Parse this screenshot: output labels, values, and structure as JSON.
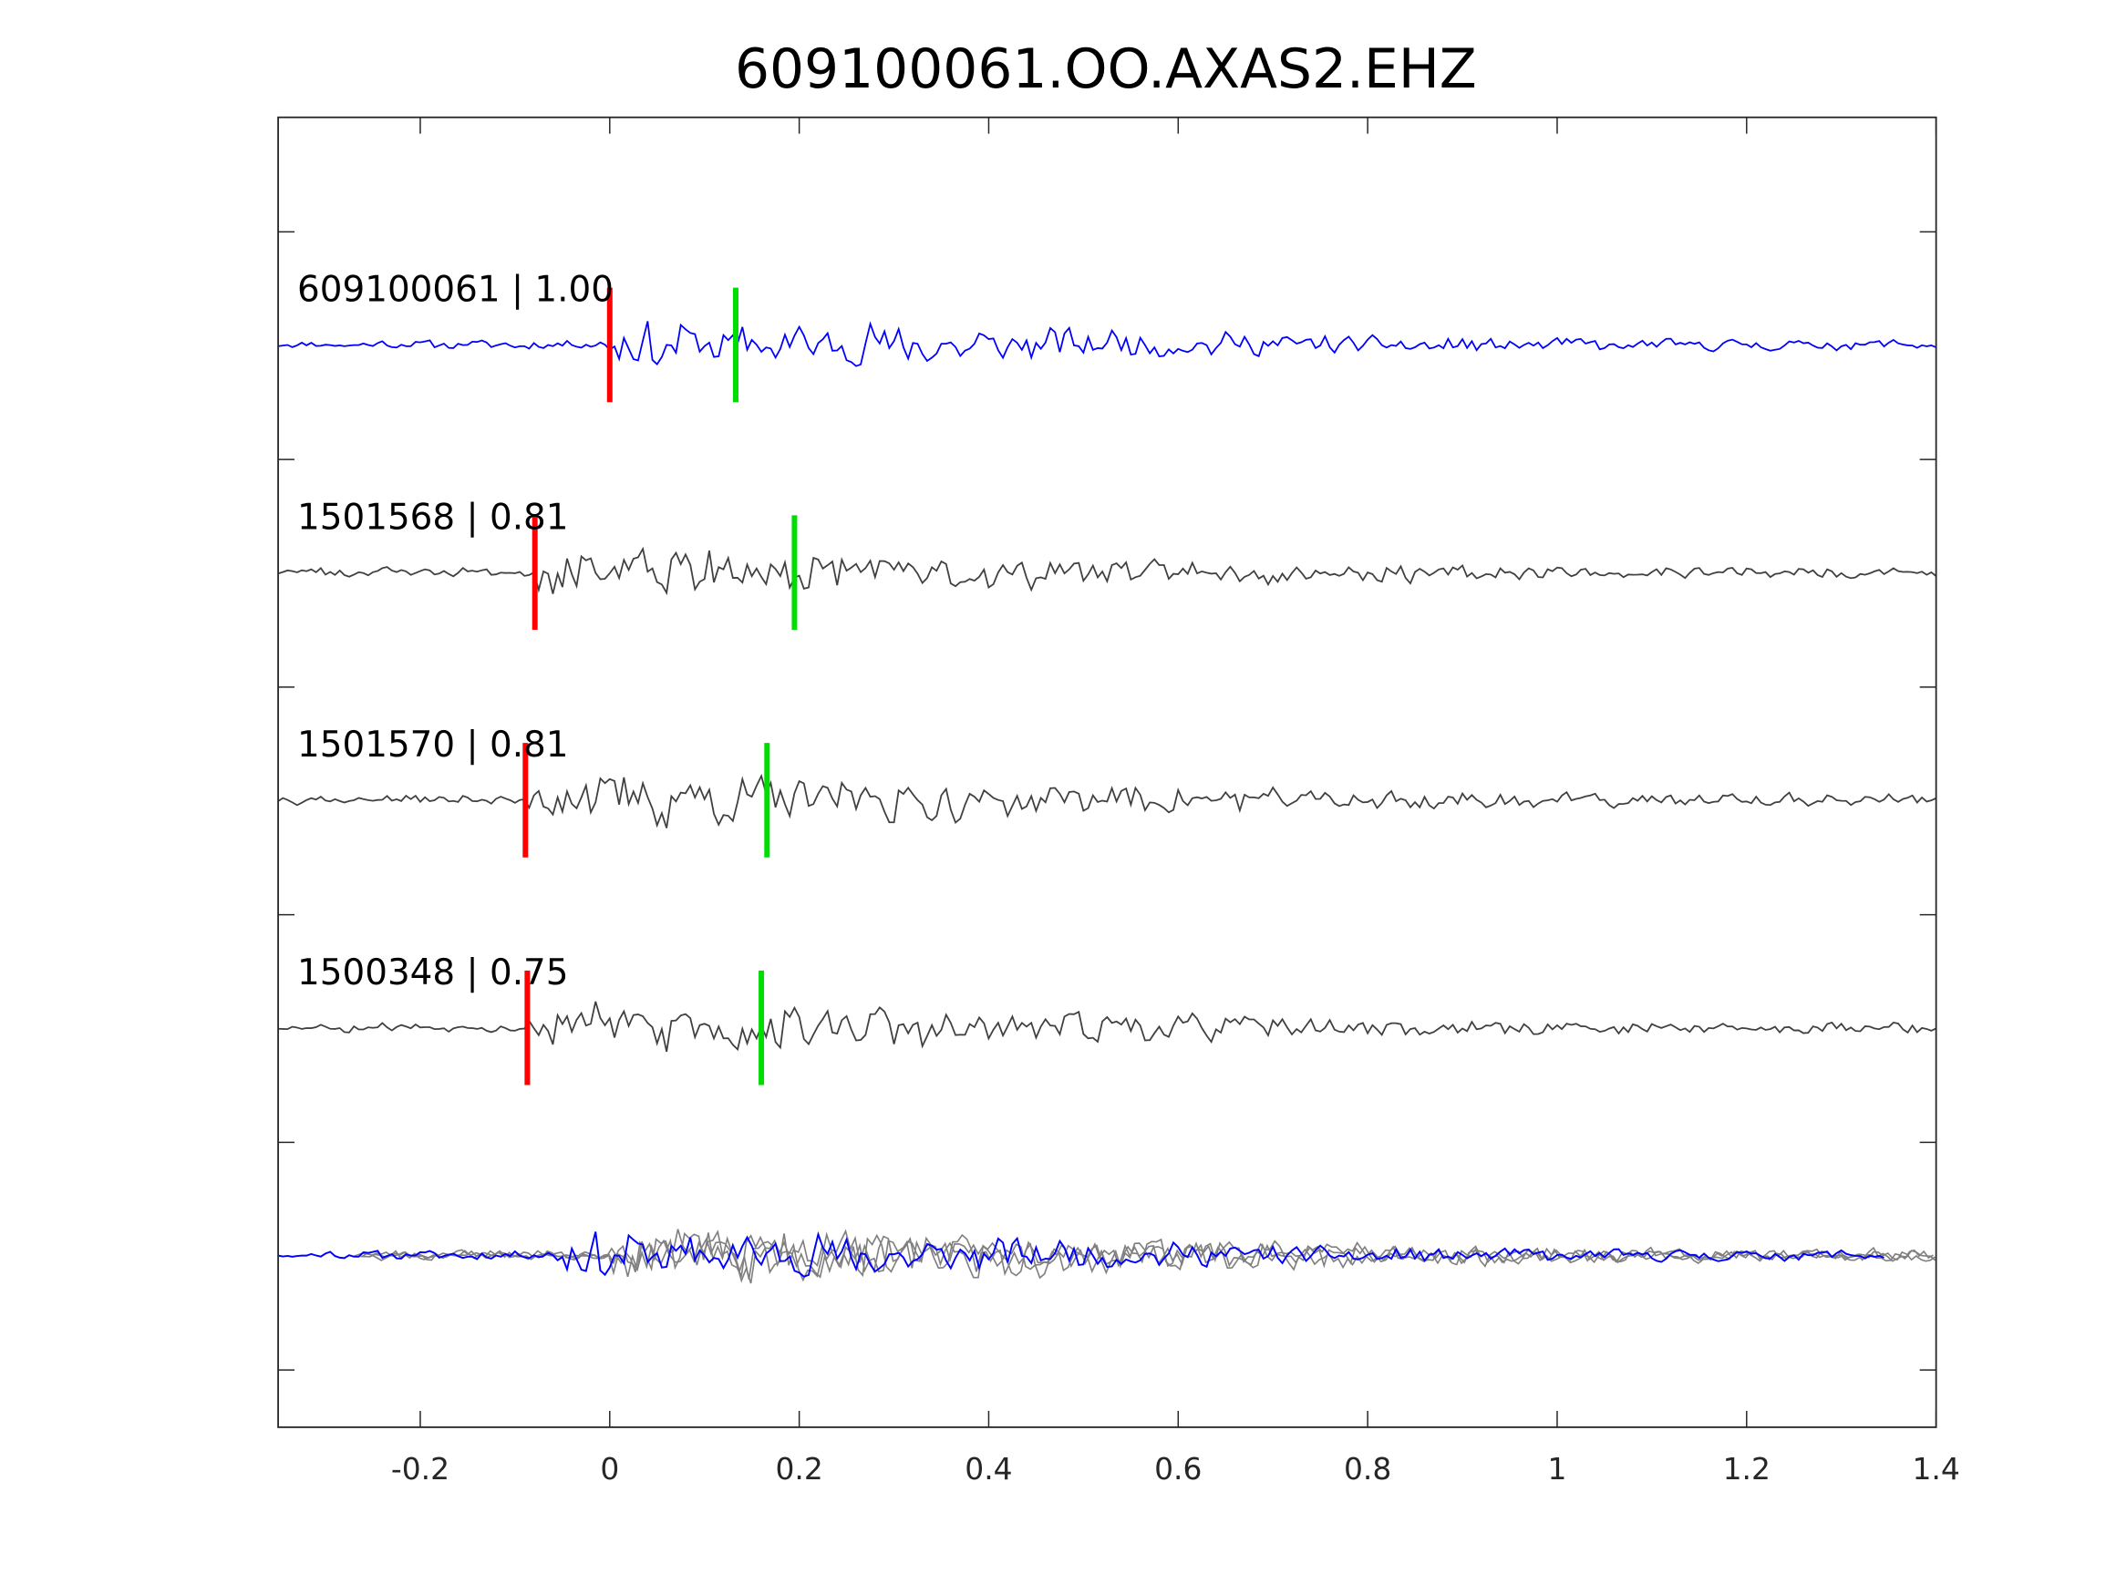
{
  "chart_data": {
    "type": "line",
    "title": "609100061.OO.AXAS2.EHZ",
    "xlabel": "",
    "ylabel": "",
    "xlim": [
      -0.35,
      1.4
    ],
    "xticks": [
      "-0.2",
      "0",
      "0.2",
      "0.4",
      "0.6",
      "0.8",
      "1",
      "1.2",
      "1.4"
    ],
    "xtick_values": [
      -0.2,
      0,
      0.2,
      0.4,
      0.6,
      0.8,
      1,
      1.2,
      1.4
    ],
    "grid": false,
    "traces": [
      {
        "label": "609100061 | 1.00",
        "event": "609100061",
        "cc": 1.0,
        "color": "#0000ff",
        "p_pick": 0.0,
        "s_pick": 0.133,
        "seed": 11
      },
      {
        "label": "1501568 | 0.81",
        "event": "1501568",
        "cc": 0.81,
        "color": "#404040",
        "p_pick": -0.079,
        "s_pick": 0.195,
        "seed": 23
      },
      {
        "label": "1501570 | 0.81",
        "event": "1501570",
        "cc": 0.81,
        "color": "#404040",
        "p_pick": -0.089,
        "s_pick": 0.166,
        "seed": 37
      },
      {
        "label": "1500348 | 0.75",
        "event": "1500348",
        "cc": 0.75,
        "color": "#404040",
        "p_pick": -0.087,
        "s_pick": 0.16,
        "seed": 53
      }
    ],
    "stack": {
      "description_color_aligned": "#808080",
      "reference_color": "#0000ff"
    },
    "pick_colors": {
      "p": "#ff0000",
      "s": "#00dd00"
    }
  }
}
